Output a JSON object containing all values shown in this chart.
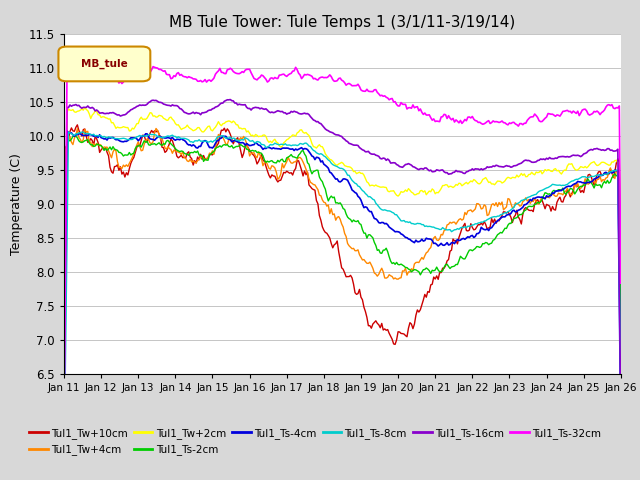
{
  "title": "MB Tule Tower: Tule Temps 1 (3/1/11-3/19/14)",
  "ylabel": "Temperature (C)",
  "xlim": [
    0,
    375
  ],
  "ylim": [
    6.5,
    11.5
  ],
  "yticks": [
    6.5,
    7.0,
    7.5,
    8.0,
    8.5,
    9.0,
    9.5,
    10.0,
    10.5,
    11.0,
    11.5
  ],
  "xtick_labels": [
    "Jan 11",
    "Jan 12",
    "Jan 13",
    "Jan 14",
    "Jan 15",
    "Jan 16",
    "Jan 17",
    "Jan 18",
    "Jan 19",
    "Jan 20",
    "Jan 21",
    "Jan 22",
    "Jan 23",
    "Jan 24",
    "Jan 25",
    "Jan 26"
  ],
  "xtick_positions": [
    0,
    25,
    50,
    75,
    100,
    125,
    150,
    175,
    200,
    225,
    250,
    275,
    300,
    325,
    350,
    375
  ],
  "legend_label": "MB_tule",
  "series_colors": {
    "Tul1_Tw+10cm": "#cc0000",
    "Tul1_Tw+4cm": "#ff8800",
    "Tul1_Tw+2cm": "#ffff00",
    "Tul1_Ts-2cm": "#00cc00",
    "Tul1_Ts-4cm": "#0000dd",
    "Tul1_Ts-8cm": "#00cccc",
    "Tul1_Ts-16cm": "#8800cc",
    "Tul1_Ts-32cm": "#ff00ff"
  },
  "background_color": "#d8d8d8",
  "plot_bg_color": "#ffffff",
  "title_fontsize": 11
}
